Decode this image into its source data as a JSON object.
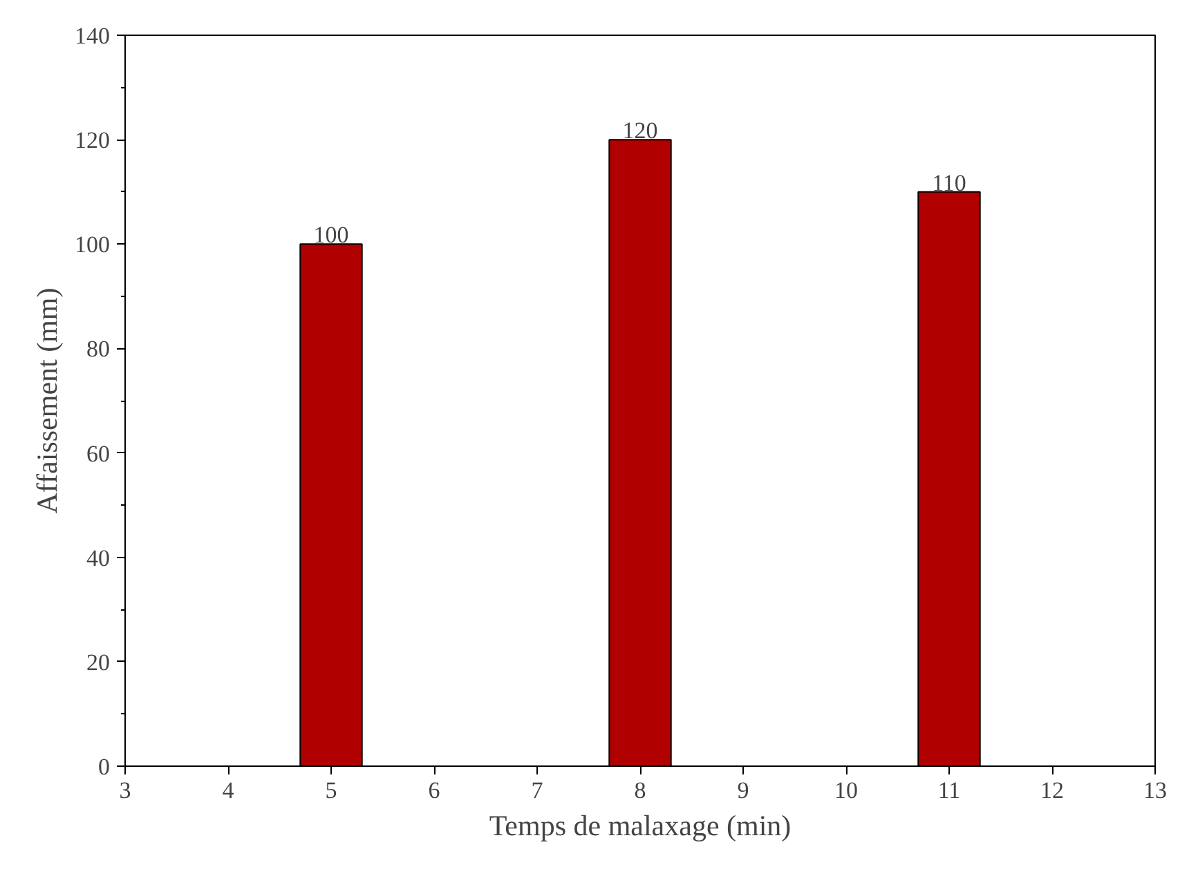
{
  "chart_data": {
    "type": "bar",
    "xlabel": "Temps de malaxage (min)",
    "ylabel": "Affaissement (mm)",
    "x": [
      5,
      8,
      11
    ],
    "values": [
      100,
      120,
      110
    ],
    "color": "#b00000",
    "xlim": [
      3,
      13
    ],
    "xticks": [
      3,
      4,
      5,
      6,
      7,
      8,
      9,
      10,
      11,
      12,
      13
    ],
    "ylim": [
      0,
      140
    ],
    "yticks": [
      0,
      20,
      40,
      60,
      80,
      100,
      120,
      140
    ],
    "data_labels": true
  }
}
